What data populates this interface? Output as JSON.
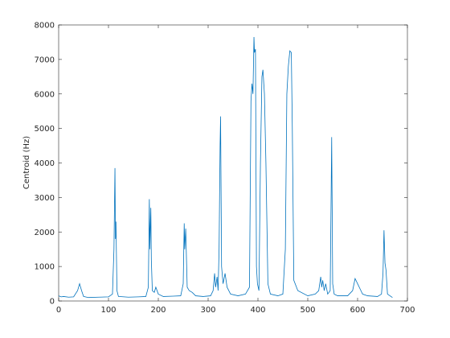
{
  "chart_data": {
    "type": "line",
    "y_label": "Centroid (Hz)",
    "x": [
      0,
      5,
      10,
      20,
      30,
      38,
      42,
      46,
      50,
      60,
      80,
      100,
      108,
      111,
      113,
      114,
      115,
      117,
      120,
      140,
      160,
      175,
      180,
      182,
      183,
      185,
      186,
      188,
      192,
      195,
      200,
      210,
      230,
      245,
      250,
      252,
      253,
      255,
      258,
      262,
      268,
      275,
      290,
      305,
      310,
      313,
      315,
      318,
      320,
      322,
      324,
      325,
      327,
      330,
      334,
      338,
      345,
      360,
      375,
      383,
      386,
      388,
      390,
      392,
      393,
      395,
      397,
      399,
      402,
      405,
      408,
      410,
      413,
      416,
      420,
      425,
      440,
      450,
      455,
      458,
      461,
      464,
      467,
      469,
      472,
      480,
      500,
      515,
      522,
      526,
      528,
      530,
      533,
      536,
      540,
      545,
      547,
      548,
      550,
      553,
      560,
      580,
      590,
      595,
      600,
      605,
      610,
      620,
      640,
      648,
      651,
      653,
      655,
      657,
      660,
      670
    ],
    "series": [
      {
        "color": "#0072bd",
        "values": [
          150,
          120,
          130,
          110,
          120,
          300,
          500,
          300,
          130,
          100,
          110,
          120,
          200,
          1500,
          3850,
          1800,
          2300,
          300,
          130,
          110,
          120,
          130,
          400,
          2950,
          1500,
          2700,
          1200,
          300,
          250,
          400,
          200,
          130,
          140,
          150,
          500,
          2250,
          1500,
          2100,
          400,
          300,
          250,
          150,
          130,
          150,
          300,
          800,
          400,
          700,
          300,
          1500,
          4500,
          5350,
          1000,
          500,
          800,
          400,
          200,
          150,
          200,
          400,
          5800,
          6300,
          6000,
          7650,
          7200,
          7300,
          1000,
          500,
          300,
          4000,
          6500,
          6700,
          6000,
          4000,
          500,
          200,
          150,
          200,
          1500,
          6000,
          6800,
          7250,
          7200,
          5000,
          600,
          300,
          150,
          200,
          300,
          700,
          400,
          600,
          300,
          500,
          200,
          300,
          3200,
          4750,
          500,
          200,
          150,
          150,
          300,
          650,
          500,
          350,
          200,
          150,
          130,
          200,
          800,
          2050,
          1100,
          900,
          200,
          100
        ]
      }
    ],
    "xlim": [
      0,
      700
    ],
    "xticks": [
      0,
      100,
      200,
      300,
      400,
      500,
      600,
      700
    ],
    "ylim": [
      0,
      8000
    ],
    "yticks": [
      0,
      1000,
      2000,
      3000,
      4000,
      5000,
      6000,
      7000,
      8000
    ],
    "grid": false
  }
}
